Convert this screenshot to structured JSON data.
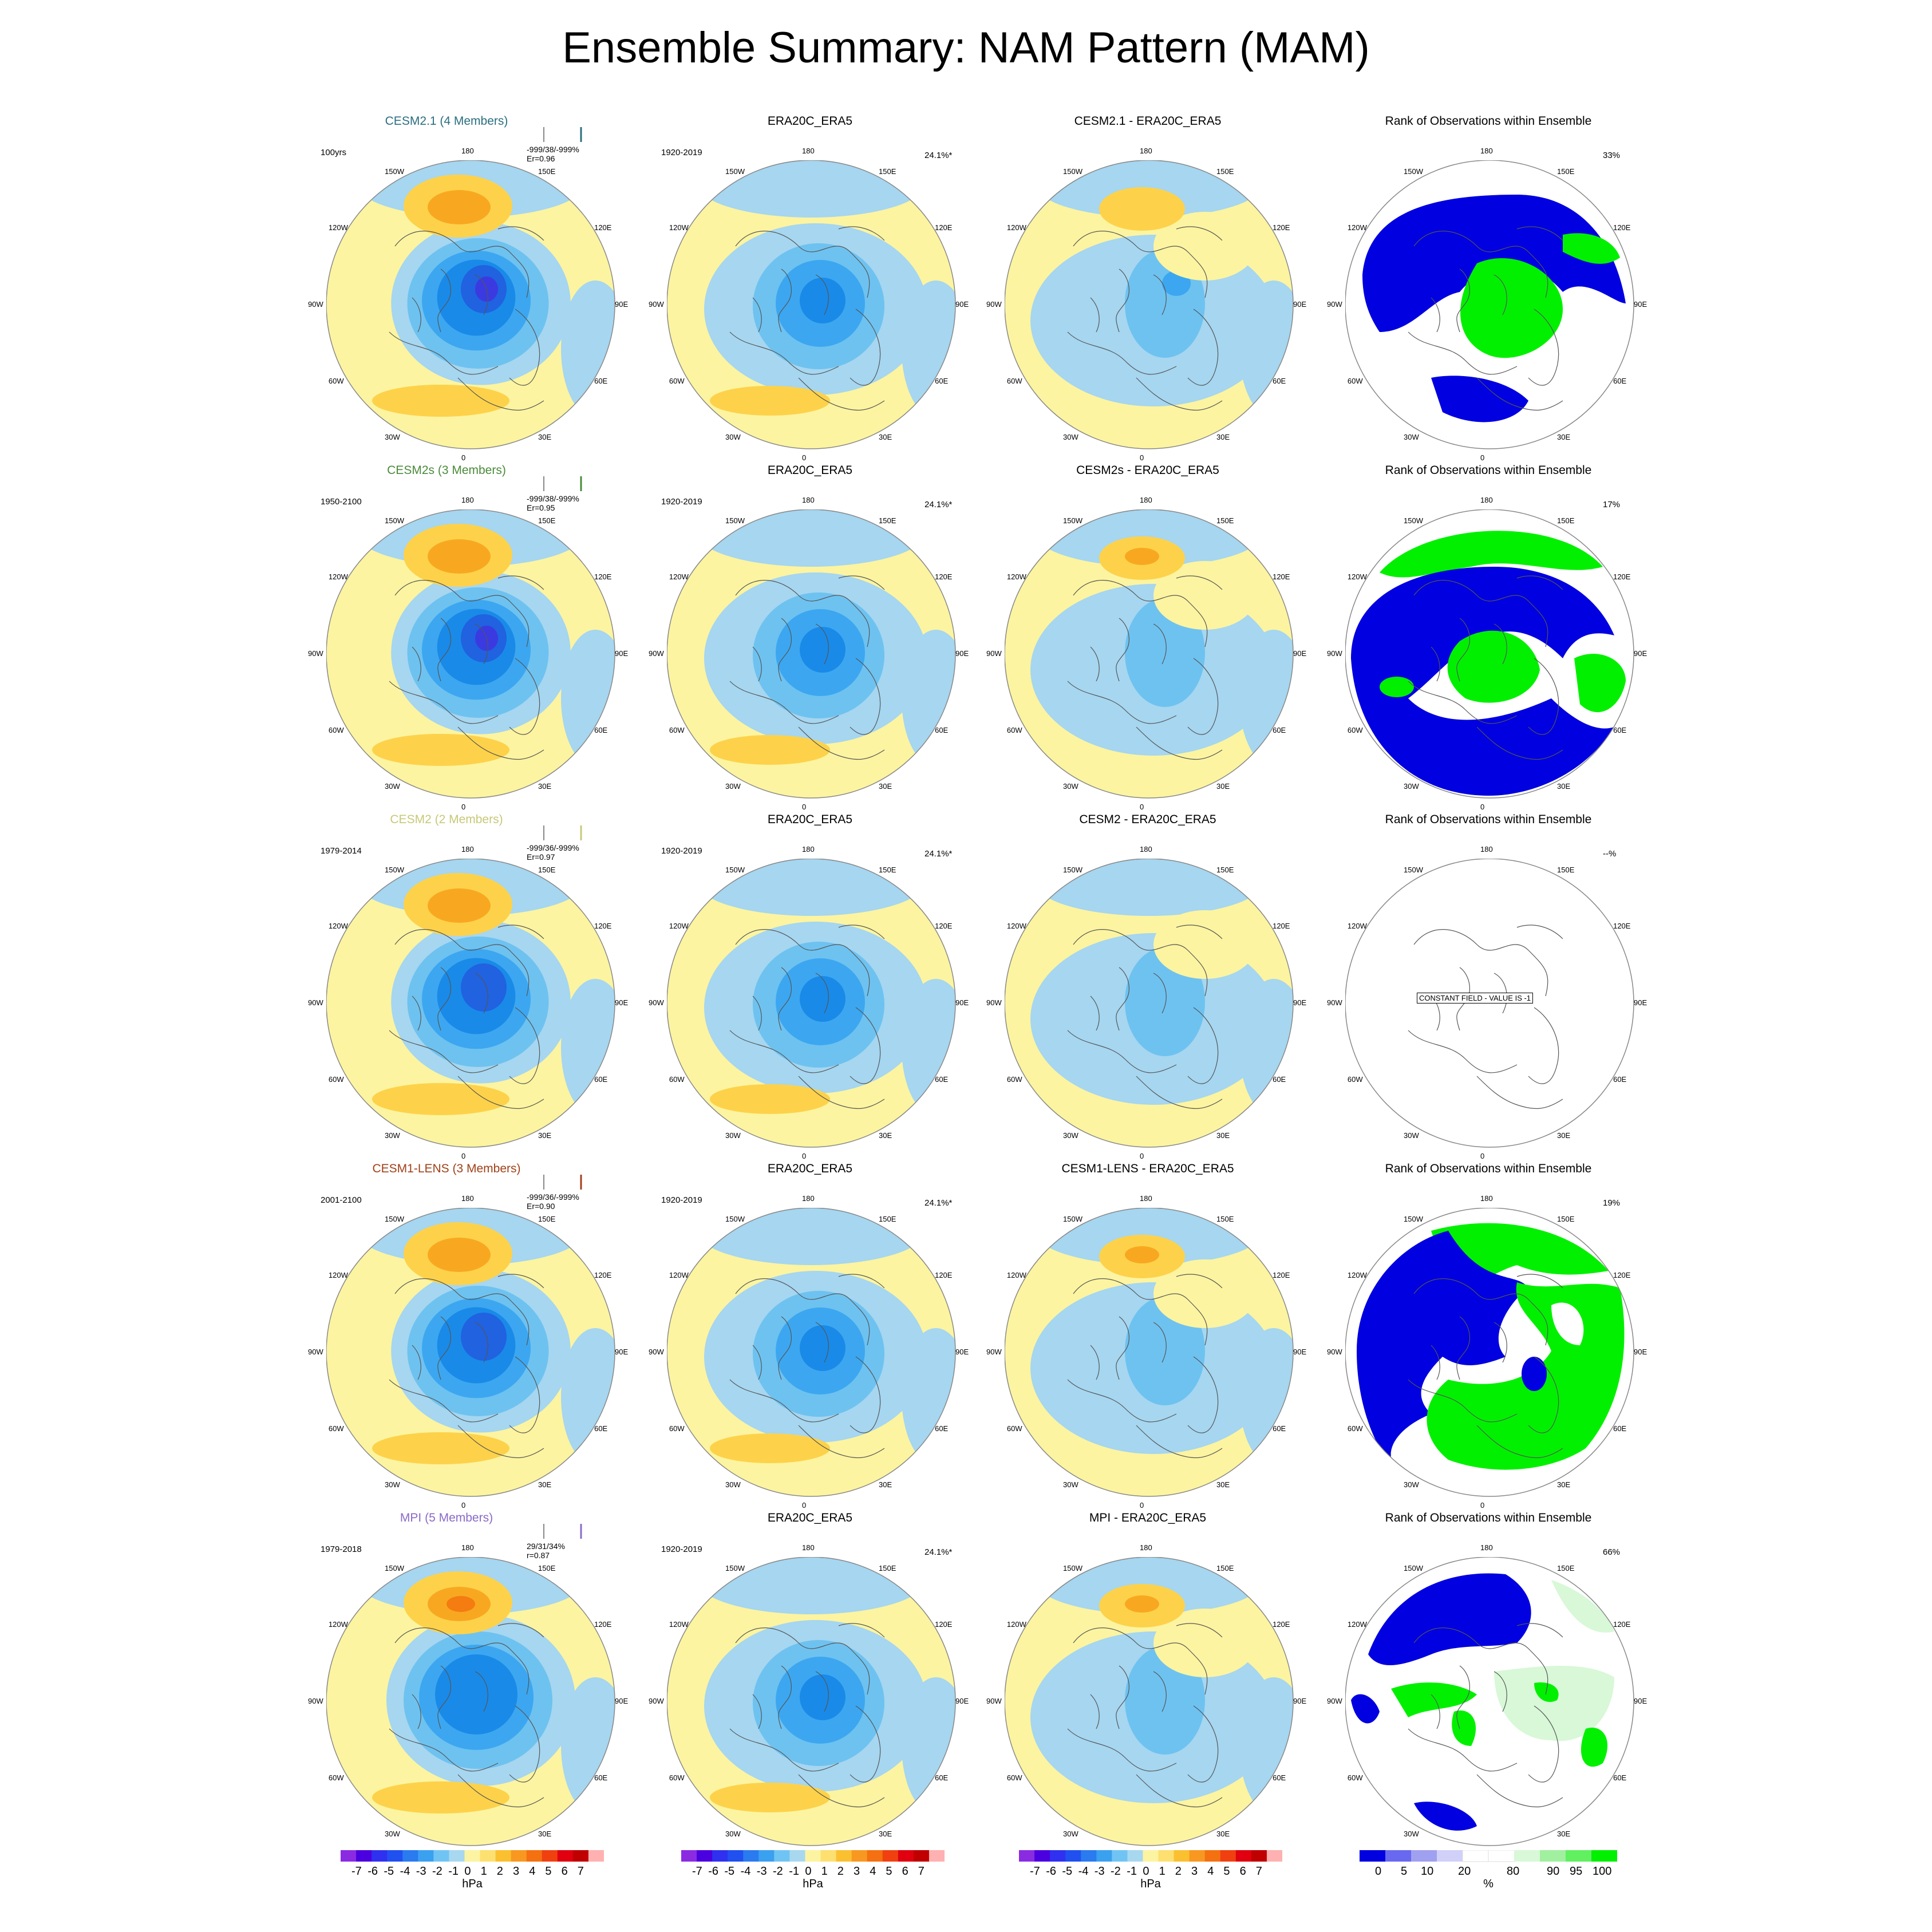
{
  "title": "Ensemble Summary: NAM Pattern (MAM)",
  "lon_labels": [
    "180",
    "150E",
    "120E",
    "90E",
    "60E",
    "30E",
    "0",
    "30W",
    "60W",
    "90W",
    "120W",
    "150W"
  ],
  "colors": {
    "ocean_bg": "#a6d6f0",
    "land_bg": "#fcf4a0",
    "blue_levels": [
      "#a6d6f0",
      "#6ec2f0",
      "#3ca7f0",
      "#1a8ae8",
      "#2062e0",
      "#3a3ae0"
    ],
    "warm_levels": [
      "#fcf4a0",
      "#fdd24a",
      "#f8a820",
      "#f47c10"
    ],
    "rank_blue": "#0000e0",
    "rank_green": "#00f000",
    "rank_pale": "#d8f8d8"
  },
  "rows": [
    {
      "model": "CESM2.1 (4 Members)",
      "model_color": "#2a6e80",
      "years": "100yrs",
      "stats1": "-999/38/-999%",
      "stats2": "Er=0.96",
      "obs_title": "ERA20C_ERA5",
      "obs_years": "1920-2019",
      "obs_pct": "24.1%*",
      "diff_title": "CESM2.1 - ERA20C_ERA5",
      "rank_title": "Rank of Observations within Ensemble",
      "rank_pct": "33%",
      "rank_constant": ""
    },
    {
      "model": "CESM2s (3 Members)",
      "model_color": "#4a8a3a",
      "years": "1950-2100",
      "stats1": "-999/38/-999%",
      "stats2": "Er=0.95",
      "obs_title": "ERA20C_ERA5",
      "obs_years": "1920-2019",
      "obs_pct": "24.1%*",
      "diff_title": "CESM2s - ERA20C_ERA5",
      "rank_title": "Rank of Observations within Ensemble",
      "rank_pct": "17%",
      "rank_constant": ""
    },
    {
      "model": "CESM2 (2 Members)",
      "model_color": "#c8c878",
      "years": "1979-2014",
      "stats1": "-999/36/-999%",
      "stats2": "Er=0.97",
      "obs_title": "ERA20C_ERA5",
      "obs_years": "1920-2019",
      "obs_pct": "24.1%*",
      "diff_title": "CESM2 - ERA20C_ERA5",
      "rank_title": "Rank of Observations within Ensemble",
      "rank_pct": "--%",
      "rank_constant": "CONSTANT FIELD - VALUE IS -1"
    },
    {
      "model": "CESM1-LENS (3 Members)",
      "model_color": "#a04018",
      "years": "2001-2100",
      "stats1": "-999/36/-999%",
      "stats2": "Er=0.90",
      "obs_title": "ERA20C_ERA5",
      "obs_years": "1920-2019",
      "obs_pct": "24.1%*",
      "diff_title": "CESM1-LENS - ERA20C_ERA5",
      "rank_title": "Rank of Observations within Ensemble",
      "rank_pct": "19%",
      "rank_constant": ""
    },
    {
      "model": "MPI (5 Members)",
      "model_color": "#8a6ac8",
      "years": "1979-2018",
      "stats1": "29/31/34%",
      "stats2": "r=0.87",
      "obs_title": "ERA20C_ERA5",
      "obs_years": "1920-2019",
      "obs_pct": "24.1%*",
      "diff_title": "MPI - ERA20C_ERA5",
      "rank_title": "Rank of Observations within Ensemble",
      "rank_pct": "66%",
      "rank_constant": ""
    }
  ],
  "colorbars": {
    "hpa_labels": [
      "-7",
      "-6",
      "-5",
      "-4",
      "-3",
      "-2",
      "-1",
      "0",
      "1",
      "2",
      "3",
      "4",
      "5",
      "6",
      "7"
    ],
    "hpa_unit": "hPa",
    "hpa_colors": [
      "#8a2be2",
      "#4b00e0",
      "#3030f0",
      "#2050f0",
      "#2a7af0",
      "#3aa0f0",
      "#70c4f4",
      "#a8d8f0",
      "#fcf4a0",
      "#fde070",
      "#fbc030",
      "#f89820",
      "#f47010",
      "#f04010",
      "#e00010",
      "#c00000",
      "#ffb0b0"
    ],
    "rank_labels": [
      "0",
      "5",
      "10",
      "20",
      "80",
      "90",
      "95",
      "100"
    ],
    "rank_unit": "%",
    "rank_colors": [
      "#0000e0",
      "#6868f0",
      "#a0a0f0",
      "#d0d0f8",
      "#ffffff",
      "#ffffff",
      "#d8f8d8",
      "#a0f0a0",
      "#60f060",
      "#00f000"
    ]
  }
}
